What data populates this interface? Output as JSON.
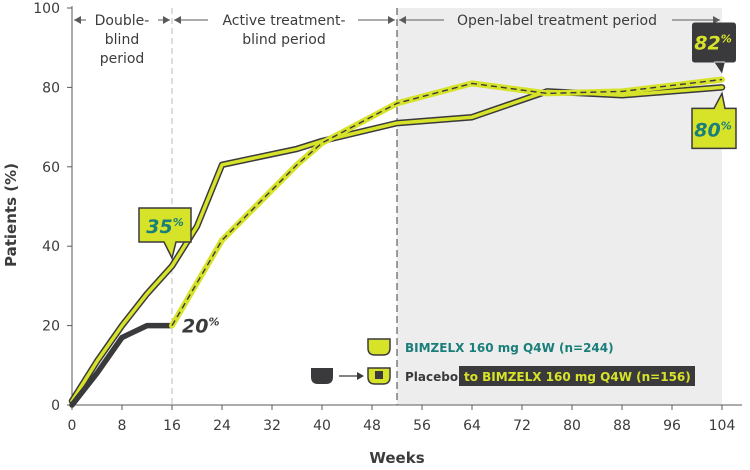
{
  "chart_data": {
    "type": "line",
    "xlabel": "Weeks",
    "ylabel": "Patients (%)",
    "x_ticks": [
      0,
      8,
      16,
      24,
      32,
      40,
      48,
      56,
      64,
      72,
      80,
      88,
      96,
      104
    ],
    "y_ticks": [
      0,
      20,
      40,
      60,
      80,
      100
    ],
    "xlim": [
      0,
      104
    ],
    "ylim": [
      0,
      100
    ],
    "grid": false,
    "legend_position": "bottom-right",
    "periods": [
      {
        "label_line1": "Double-",
        "label_line2": "blind",
        "label_line3": "period",
        "start": 0,
        "end": 16
      },
      {
        "label_line1": "Active treatment-",
        "label_line2": "blind period",
        "start": 16,
        "end": 52
      },
      {
        "label_line1": "Open-label treatment period",
        "start": 52,
        "end": 104,
        "shaded": true
      }
    ],
    "series": [
      {
        "name": "BIMZELX 160 mg Q4W (n=244)",
        "style": "solid",
        "points": [
          [
            0,
            1
          ],
          [
            4,
            11
          ],
          [
            8,
            20
          ],
          [
            12,
            28
          ],
          [
            16,
            35
          ],
          [
            20,
            45
          ],
          [
            24,
            60.5
          ],
          [
            36,
            64.5
          ],
          [
            40,
            66.5
          ],
          [
            52,
            71
          ],
          [
            64,
            72.5
          ],
          [
            76,
            79
          ],
          [
            88,
            78
          ],
          [
            104,
            80
          ]
        ]
      },
      {
        "name_part1": "Placebo",
        "name_part2": "to BIMZELX 160 mg Q4W (n=156)",
        "style": "placebo-switch",
        "points": [
          [
            0,
            0
          ],
          [
            4,
            8
          ],
          [
            8,
            17
          ],
          [
            12,
            20
          ],
          [
            16,
            20
          ],
          [
            24,
            41.5
          ],
          [
            36,
            60.5
          ],
          [
            40,
            66
          ],
          [
            52,
            76
          ],
          [
            64,
            81
          ],
          [
            76,
            78.5
          ],
          [
            88,
            79
          ],
          [
            104,
            82
          ]
        ],
        "switch_x": 16
      }
    ],
    "callouts": {
      "bimzelx_wk16": {
        "value": "35",
        "suffix": "%"
      },
      "placebo_wk16": {
        "value": "20",
        "suffix": "%"
      },
      "placebo_wk104": {
        "value": "82",
        "suffix": "%"
      },
      "bimzelx_wk104": {
        "value": "80",
        "suffix": "%"
      }
    },
    "legend": {
      "bimzelx": "BIMZELX 160 mg Q4W (n=244)",
      "placebo": "Placebo",
      "switch": "to BIMZELX 160 mg Q4W (n=156)"
    }
  },
  "colors": {
    "lime": "#d7e329",
    "dark": "#3a3a3c",
    "teal": "#1a7e7a",
    "shade": "#ededed",
    "axis": "#5a5a5a"
  }
}
